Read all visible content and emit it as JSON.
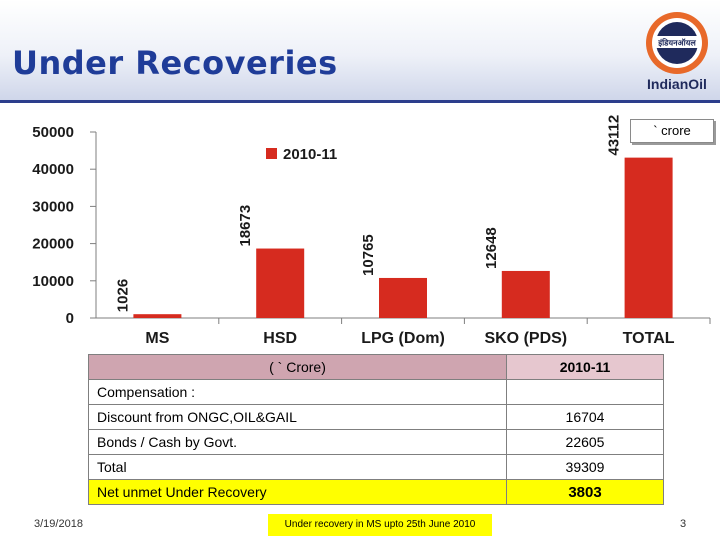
{
  "header": {
    "title": "Under Recoveries",
    "logo_text": "इंडियनऑयल",
    "brand": "IndianOil"
  },
  "colors": {
    "title": "#1f3c98",
    "bar": "#d62b1f",
    "logo_ring": "#e8692a",
    "logo_blue": "#1f2a5c",
    "table_header": "#e6c7cf",
    "highlight": "#ffff00",
    "net_value": "#c00000"
  },
  "unit_label": "` crore",
  "chart_data": {
    "type": "bar",
    "categories": [
      "MS",
      "HSD",
      "LPG (Dom)",
      "SKO (PDS)",
      "TOTAL"
    ],
    "series": [
      {
        "name": "2010-11",
        "values": [
          1026,
          18673,
          10765,
          12648,
          43112
        ]
      }
    ],
    "ylim": [
      0,
      50000
    ],
    "yticks": [
      0,
      10000,
      20000,
      30000,
      40000,
      50000
    ],
    "xlabel": "",
    "ylabel": "",
    "legend_position": "top-center",
    "grid": false
  },
  "table": {
    "header_left": "( ` Crore)",
    "header_right": "2010-11",
    "section_label": "Compensation :",
    "rows": [
      {
        "label": "Discount from ONGC,OIL&GAIL",
        "value": "16704"
      },
      {
        "label": "Bonds / Cash by Govt.",
        "value": "22605"
      },
      {
        "label": "Total",
        "value": "39309"
      }
    ],
    "net": {
      "label": "Net unmet Under Recovery",
      "value": "3803"
    }
  },
  "footer": {
    "date": "3/19/2018",
    "note": "Under recovery in MS upto 25th June 2010",
    "page": "3"
  }
}
